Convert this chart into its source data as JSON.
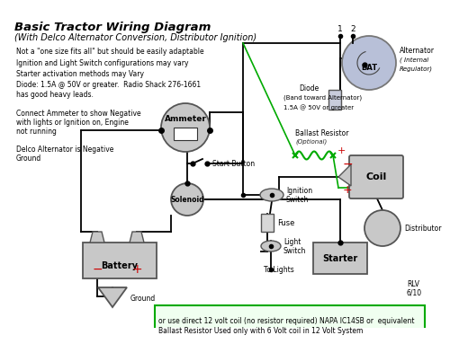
{
  "title": "Basic Tractor Wiring Diagram",
  "subtitle": "(With Delco Alternator Conversion, Distributor Ignition)",
  "bg_color": "#ffffff",
  "note1": "Not a \"one size fits all\" but should be easily adaptable",
  "note2": "Ignition and Light Switch configurations may vary",
  "note3": "Starter activation methods may Vary",
  "note4a": "Diode: 1.5A @ 50V or greater.  Radio Shack 276-1661",
  "note4b": "has good heavy leads.",
  "note5a": "Connect Ammeter to show Negative",
  "note5b": "with lights or Ignition on, Engine",
  "note5c": "not running",
  "note6a": "Delco Alternator is Negative",
  "note6b": "Ground",
  "footer_text1": "Ballast Resistor Used only with 6 Volt coil in 12 Volt System",
  "footer_text2": "or use direct 12 volt coil (no resistor required) NAPA IC14SB or  equivalent",
  "rlv_text1": "RLV",
  "rlv_text2": "6/10",
  "component_fill": "#c8c8c8",
  "alt_fill": "#b8c0d8",
  "wire_color": "#000000",
  "green_wire": "#00aa00",
  "red_accent": "#cc0000",
  "footer_border": "#00aa00",
  "footer_fill": "#f0fff0",
  "diode_fill": "#c8ccdc",
  "fuse_fill": "#d8d8d8"
}
